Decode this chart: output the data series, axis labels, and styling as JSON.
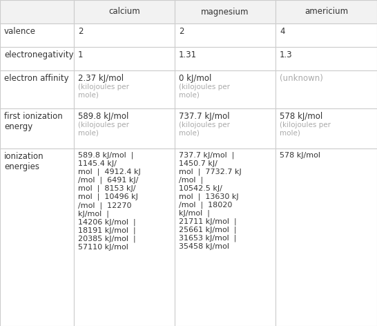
{
  "col_headers": [
    "calcium",
    "magnesium",
    "americium"
  ],
  "row_labels": [
    "valence",
    "electronegativity",
    "electron affinity",
    "first ionization\nenergy",
    "ionization\nenergies"
  ],
  "valence": [
    "2",
    "2",
    "4"
  ],
  "electronegativity": [
    "1",
    "1.31",
    "1.3"
  ],
  "electron_affinity_main": [
    "2.37 kJ/mol",
    "0 kJ/mol",
    "(unknown)"
  ],
  "electron_affinity_sub": [
    "(kilojoules per\nmole)",
    "(kilojoules per\nmole)",
    ""
  ],
  "first_ion_main": [
    "589.8 kJ/mol",
    "737.7 kJ/mol",
    "578 kJ/mol"
  ],
  "first_ion_sub": [
    "(kilojoules per\nmole)",
    "(kilojoules per\nmole)",
    "(kilojoules per\nmole)"
  ],
  "ion_energies": [
    "589.8 kJ/mol  |\n1145.4 kJ/\nmol  |  4912.4 kJ\n/mol  |  6491 kJ/\nmol  |  8153 kJ/\nmol  |  10496 kJ\n/mol  |  12270\nkJ/mol  |\n14206 kJ/mol  |\n18191 kJ/mol  |\n20385 kJ/mol  |\n57110 kJ/mol",
    "737.7 kJ/mol  |\n1450.7 kJ/\nmol  |  7732.7 kJ\n/mol  |\n10542.5 kJ/\nmol  |  13630 kJ\n/mol  |  18020\nkJ/mol  |\n21711 kJ/mol  |\n25661 kJ/mol  |\n31653 kJ/mol  |\n35458 kJ/mol",
    "578 kJ/mol"
  ],
  "border_color": "#cccccc",
  "bg_color": "#ffffff",
  "header_bg": "#f2f2f2",
  "text_dark": "#333333",
  "text_gray": "#aaaaaa",
  "font_size": 8.5,
  "font_size_sub": 7.5,
  "font_size_ion": 8.0
}
